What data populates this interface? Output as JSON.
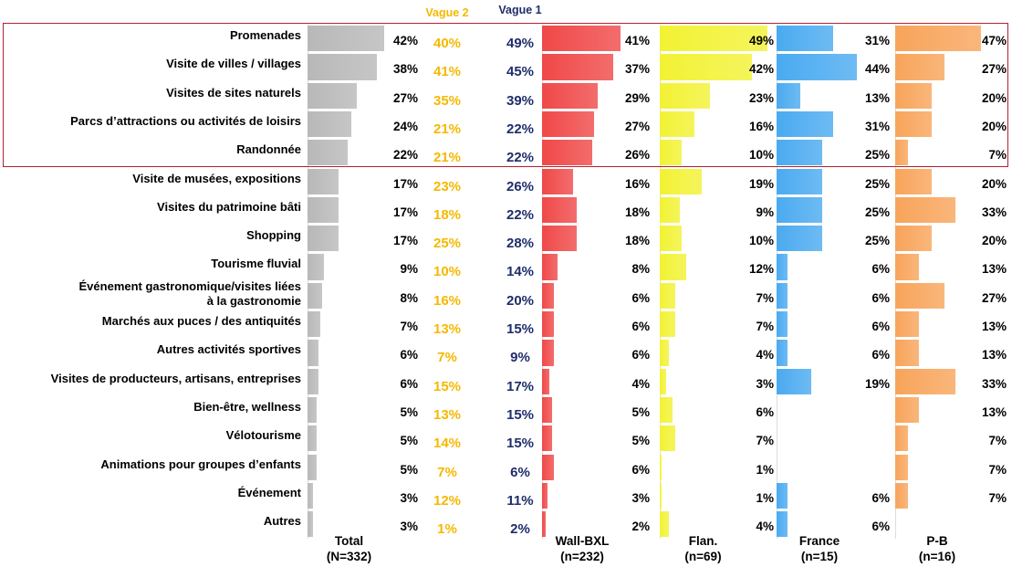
{
  "table": {
    "rows": [
      "Promenades",
      "Visite de villes / villages",
      "Visites de sites naturels",
      "Parcs d’attractions ou activités de loisirs",
      "Randonnée",
      "Visite de musées, expositions",
      "Visites du patrimoine bâti",
      "Shopping",
      "Tourisme fluvial",
      "Événement gastronomique/visites liées\nà la gastronomie",
      "Marchés aux puces / des antiquités",
      "Autres activités sportives",
      "Visites de producteurs, artisans, entreprises",
      "Bien-être, wellness",
      "Vélotourisme",
      "Animations pour groupes d’enfants",
      "Événement",
      "Autres"
    ],
    "columns": [
      {
        "header": "Total\n(N=332)",
        "bars": true,
        "color": "#b8b8b8",
        "values": [
          42,
          38,
          27,
          24,
          22,
          17,
          17,
          17,
          9,
          8,
          7,
          6,
          6,
          5,
          5,
          5,
          3,
          3
        ],
        "value_labels": [
          "42%",
          "38%",
          "27%",
          "24%",
          "22%",
          "17%",
          "17%",
          "17%",
          "9%",
          "8%",
          "7%",
          "6%",
          "6%",
          "5%",
          "5%",
          "5%",
          "3%",
          "3%"
        ]
      },
      {
        "header": "Vague 2",
        "bars": false,
        "color": "#f5b800",
        "value_labels": [
          "40%",
          "41%",
          "35%",
          "21%",
          "21%",
          "23%",
          "18%",
          "25%",
          "10%",
          "16%",
          "13%",
          "7%",
          "15%",
          "13%",
          "14%",
          "7%",
          "12%",
          "1%"
        ]
      },
      {
        "header": "Vague 1",
        "bars": false,
        "color": "#1f2d6b",
        "value_labels": [
          "49%",
          "45%",
          "39%",
          "22%",
          "22%",
          "26%",
          "22%",
          "28%",
          "14%",
          "20%",
          "15%",
          "9%",
          "17%",
          "15%",
          "15%",
          "6%",
          "11%",
          "2%"
        ]
      },
      {
        "header": "Wall-BXL\n(n=232)",
        "bars": true,
        "color": "#f04848",
        "values": [
          41,
          37,
          29,
          27,
          26,
          16,
          18,
          18,
          8,
          6,
          6,
          6,
          4,
          5,
          5,
          6,
          3,
          2
        ],
        "value_labels": [
          "41%",
          "37%",
          "29%",
          "27%",
          "26%",
          "16%",
          "18%",
          "18%",
          "8%",
          "6%",
          "6%",
          "6%",
          "4%",
          "5%",
          "5%",
          "6%",
          "3%",
          "2%"
        ]
      },
      {
        "header": "Flan.\n(n=69)",
        "bars": true,
        "color": "#f2f234",
        "values": [
          49,
          42,
          23,
          16,
          10,
          19,
          9,
          10,
          12,
          7,
          7,
          4,
          3,
          6,
          7,
          1,
          1,
          4
        ],
        "value_labels": [
          "49%",
          "42%",
          "23%",
          "16%",
          "10%",
          "19%",
          "9%",
          "10%",
          "12%",
          "7%",
          "7%",
          "4%",
          "3%",
          "6%",
          "7%",
          "1%",
          "1%",
          "4%"
        ]
      },
      {
        "header": "France\n(n=15)",
        "bars": true,
        "color": "#4aaaf0",
        "values": [
          31,
          44,
          13,
          31,
          25,
          25,
          25,
          25,
          6,
          6,
          6,
          6,
          19,
          null,
          null,
          null,
          6,
          6
        ],
        "value_labels": [
          "31%",
          "44%",
          "13%",
          "31%",
          "25%",
          "25%",
          "25%",
          "25%",
          "6%",
          "6%",
          "6%",
          "6%",
          "19%",
          null,
          null,
          null,
          "6%",
          "6%"
        ]
      },
      {
        "header": "P-B\n(n=16)",
        "bars": true,
        "color": "#f8a45a",
        "values": [
          47,
          27,
          20,
          20,
          7,
          20,
          33,
          20,
          13,
          27,
          13,
          13,
          33,
          13,
          7,
          7,
          7,
          null
        ],
        "value_labels": [
          "47%",
          "27%",
          "20%",
          "20%",
          "7%",
          "20%",
          "33%",
          "20%",
          "13%",
          "27%",
          "13%",
          "13%",
          "33%",
          "13%",
          "7%",
          "7%",
          "7%",
          null
        ]
      }
    ]
  }
}
